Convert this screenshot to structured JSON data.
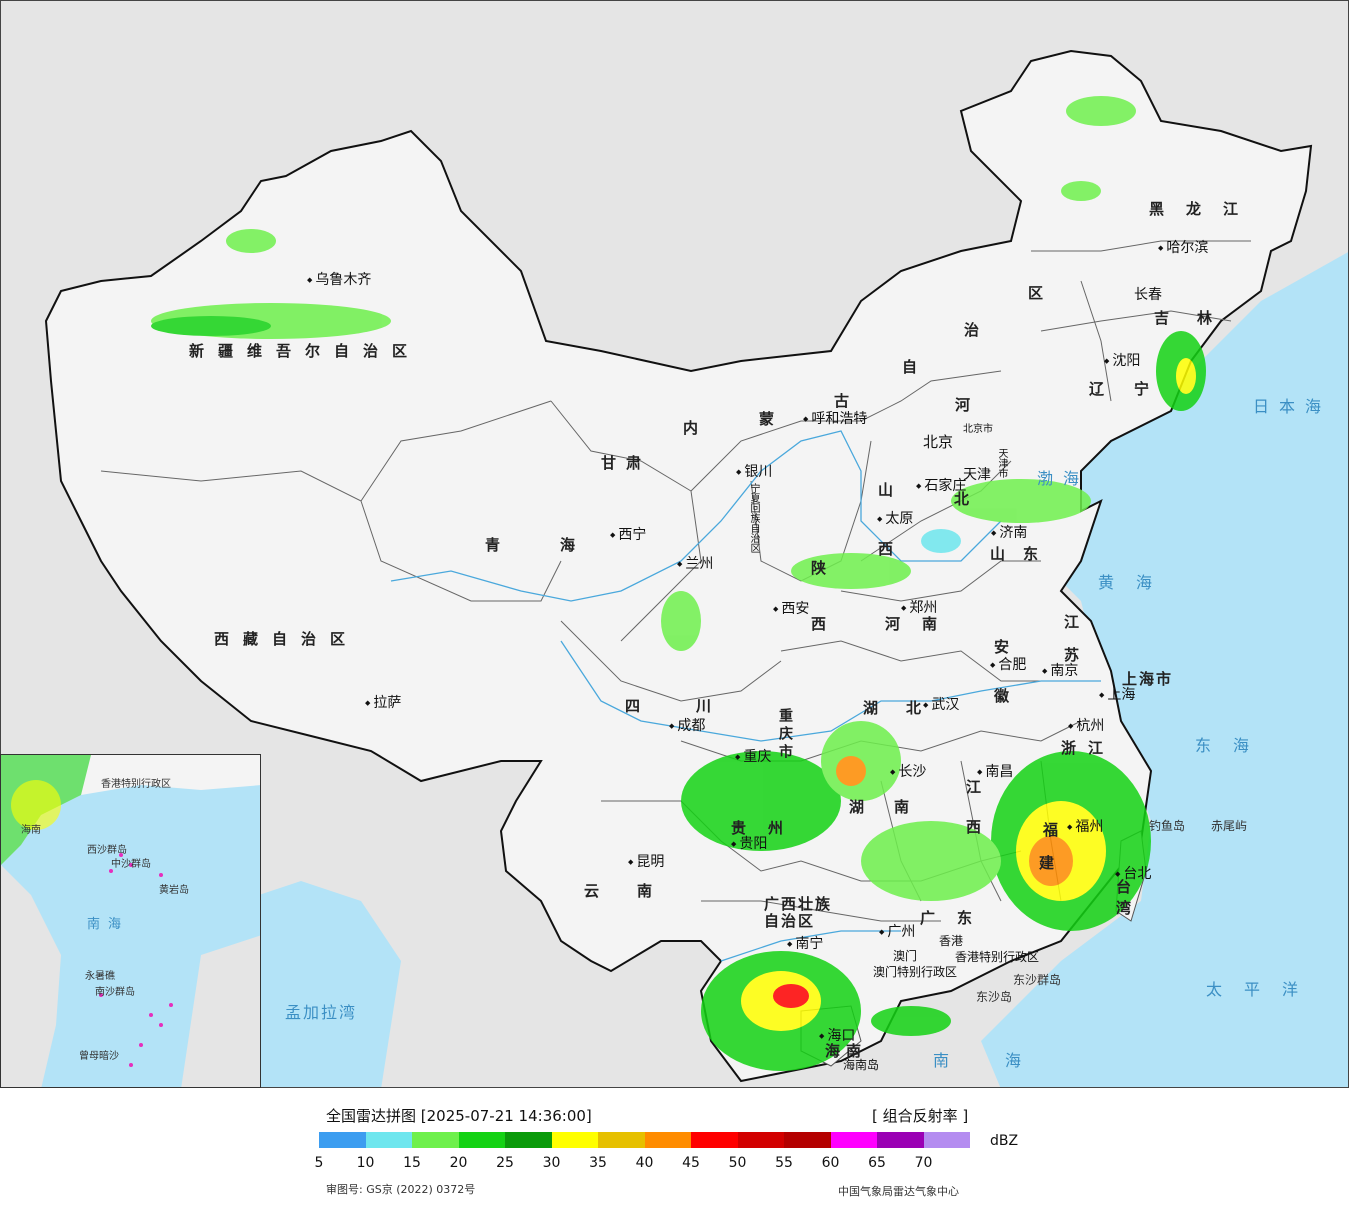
{
  "legend": {
    "title": "全国雷达拼图 [2025-07-21 14:36:00]",
    "product": "[ 组合反射率 ]",
    "unit": "dBZ",
    "ticks": [
      "5",
      "10",
      "15",
      "20",
      "25",
      "30",
      "35",
      "40",
      "45",
      "50",
      "55",
      "60",
      "65",
      "70"
    ],
    "colors": [
      "#3c9df0",
      "#6ee6ee",
      "#6ef04c",
      "#14d214",
      "#0a9a0a",
      "#ffff00",
      "#e6c000",
      "#ff8c00",
      "#ff0000",
      "#d20000",
      "#b40000",
      "#ff00ff",
      "#9a00b4",
      "#b48cf0"
    ]
  },
  "footer": {
    "approval_number": "审图号: GS京 (2022) 0372号",
    "organization": "中国气象局雷达气象中心"
  },
  "cities": {
    "urumqi": "乌鲁木齐",
    "lhasa": "拉萨",
    "xining": "西宁",
    "lanzhou": "兰州",
    "yinchuan": "银川",
    "hohhot": "呼和浩特",
    "beijing": "北京",
    "tianjin": "天津",
    "shijiazhuang": "石家庄",
    "taiyuan": "太原",
    "jinan": "济南",
    "zhengzhou": "郑州",
    "xian": "西安",
    "chengdu": "成都",
    "chongqing": "重庆",
    "wuhan": "武汉",
    "hefei": "合肥",
    "nanjing": "南京",
    "shanghai": "上海",
    "hangzhou": "杭州",
    "nanchang": "南昌",
    "changsha": "长沙",
    "guiyang": "贵阳",
    "kunming": "昆明",
    "nanning": "南宁",
    "guangzhou": "广州",
    "fuzhou": "福州",
    "taibei": "台北",
    "haikou": "海口",
    "shenyang": "沈阳",
    "changchun": "长春",
    "harbin": "哈尔滨",
    "hongkong": "香港",
    "macau": "澳门"
  },
  "provinces": {
    "xinjiang": "新疆维吾尔自治区",
    "tibet": "西藏自治区",
    "qinghai": "青海",
    "gansu": "甘肃",
    "neimenggu_1": "内",
    "neimenggu_2": "蒙",
    "neimenggu_3": "古",
    "neimenggu_4": "自",
    "neimenggu_5": "治",
    "neimenggu_6": "区",
    "heilongjiang": "黑龙江",
    "jilin": "吉林",
    "liaoning": "辽宁",
    "hebei_1": "河",
    "hebei_2": "北",
    "shanxi_1": "山",
    "shanxi_2": "西",
    "shandong": "山东",
    "henan": "河南",
    "shaanxi_1": "陕",
    "shaanxi_2": "西",
    "ningxia": "宁夏回族自治区",
    "sichuan": "四川",
    "chongqing_city": "重庆市",
    "hubei": "湖北",
    "hunan": "湖南",
    "anhui_1": "安",
    "anhui_2": "徽",
    "jiangsu": "江苏",
    "shanghai_city": "上海市",
    "zhejiang": "浙江",
    "jiangxi_1": "江",
    "jiangxi_2": "西",
    "fujian_1": "福",
    "fujian_2": "建",
    "guizhou": "贵州",
    "yunnan": "云南",
    "guangxi_1": "广西壮族",
    "guangxi_2": "自治区",
    "guangdong": "广东",
    "hainan": "海南",
    "hainan_island": "海南岛",
    "taiwan": "台湾",
    "hk_sar": "香港特别行政区",
    "macau_sar": "澳门特别行政区",
    "beijing_city": "北京市",
    "tianjin_city": "天津市"
  },
  "seas": {
    "japan_sea": "日本海",
    "bohai": "渤海",
    "yellow_sea": "黄海",
    "east_sea": "东海",
    "pacific": "太平洋",
    "south_sea": "南海",
    "bengal_bay": "孟加拉湾",
    "diaoyu": "钓鱼岛",
    "chiwei": "赤尾屿",
    "dongsha_islands": "东沙群岛",
    "dongsha_island": "东沙岛"
  },
  "inset": {
    "south_sea": "南海",
    "xisha": "西沙群岛",
    "zhongsha": "中沙群岛",
    "huangyan": "黄岩岛",
    "nansha": "南沙群岛",
    "yongshu": "永暑礁",
    "zengmu": "曾母暗沙",
    "hainan": "海南",
    "hk": "香港特别行政区"
  }
}
